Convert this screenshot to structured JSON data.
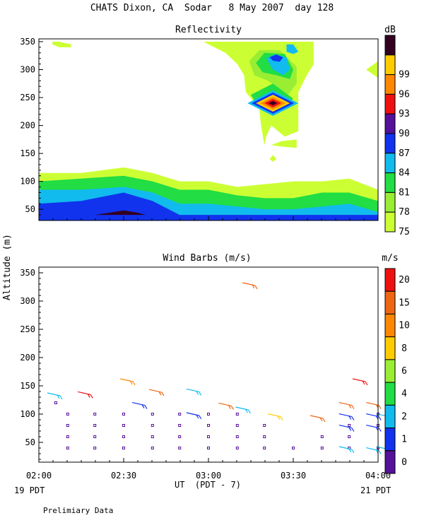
{
  "figure": {
    "title": "CHATS Dixon, CA  Sodar   8 May 2007  day 128",
    "xlabel": "UT  (PDT - 7)",
    "ylabel": "Altitude (m)",
    "x_left_note": "19 PDT",
    "x_right_note": "21 PDT",
    "footer": "Prelimiary Data"
  },
  "chart_data": [
    {
      "type": "heatmap",
      "title": "Reflectivity",
      "colorbar_unit": "dB",
      "colorbar_ticks": [
        "75",
        "78",
        "81",
        "84",
        "87",
        "90",
        "93",
        "96",
        "99"
      ],
      "colorbar_colors": [
        "#ccff33",
        "#99ee33",
        "#22dd44",
        "#11bbee",
        "#1133ee",
        "#551199",
        "#ee1111",
        "#ff8800",
        "#ffcc00",
        "#330022"
      ],
      "x_ticks": [
        "02:00",
        "02:30",
        "03:00",
        "03:30",
        "04:00"
      ],
      "x_range_hours": [
        2.0,
        4.0
      ],
      "y_ticks": [
        "50",
        "100",
        "150",
        "200",
        "250",
        "300",
        "350"
      ],
      "ylim": [
        30,
        355
      ],
      "layers": [
        {
          "label_range": "75-78",
          "color": "#ccff33",
          "x": [
            2.0,
            2.25,
            2.5,
            2.67,
            2.83,
            3.0,
            3.17,
            3.33,
            3.5,
            3.67,
            3.83,
            4.0
          ],
          "y_top": [
            115,
            115,
            125,
            115,
            100,
            100,
            90,
            95,
            100,
            100,
            105,
            85
          ]
        },
        {
          "label_range": "78-81",
          "color": "#22dd44",
          "x": [
            2.0,
            2.25,
            2.5,
            2.67,
            2.83,
            3.0,
            3.17,
            3.33,
            3.5,
            3.67,
            3.83,
            4.0
          ],
          "y_top": [
            100,
            105,
            110,
            100,
            85,
            85,
            75,
            70,
            70,
            80,
            80,
            65
          ]
        },
        {
          "label_range": "81-84",
          "color": "#11bbee",
          "x": [
            2.0,
            2.25,
            2.5,
            2.67,
            2.83,
            3.0,
            3.17,
            3.33,
            3.5,
            3.67,
            3.83,
            4.0
          ],
          "y_top": [
            85,
            85,
            90,
            80,
            60,
            60,
            55,
            50,
            50,
            55,
            60,
            45
          ]
        },
        {
          "label_range": "84-87",
          "color": "#1133ee",
          "x": [
            2.0,
            2.25,
            2.5,
            2.67,
            2.83,
            3.0,
            3.17,
            3.33,
            3.5,
            3.67,
            3.83,
            4.0
          ],
          "y_top": [
            60,
            65,
            80,
            65,
            40,
            40,
            40,
            40,
            40,
            40,
            40,
            40
          ]
        }
      ],
      "features": [
        {
          "kind": "patch",
          "color": "#ccff33",
          "points": [
            [
              2.08,
              350
            ],
            [
              2.12,
              350
            ],
            [
              2.19,
              345
            ],
            [
              2.19,
              340
            ],
            [
              2.12,
              340
            ],
            [
              2.08,
              345
            ]
          ]
        },
        {
          "kind": "patch",
          "color": "#ccff33",
          "points": [
            [
              2.97,
              350
            ],
            [
              3.62,
              350
            ],
            [
              3.62,
              310
            ],
            [
              3.58,
              290
            ],
            [
              3.53,
              260
            ],
            [
              3.53,
              190
            ],
            [
              3.45,
              180
            ],
            [
              3.37,
              200
            ],
            [
              3.34,
              180
            ],
            [
              3.33,
              165
            ],
            [
              3.31,
              200
            ],
            [
              3.3,
              230
            ],
            [
              3.22,
              260
            ],
            [
              3.21,
              290
            ],
            [
              3.17,
              310
            ],
            [
              3.1,
              330
            ]
          ]
        },
        {
          "kind": "patch",
          "color": "#99ee33",
          "points": [
            [
              3.24,
              315
            ],
            [
              3.3,
              335
            ],
            [
              3.42,
              335
            ],
            [
              3.52,
              305
            ],
            [
              3.52,
              275
            ],
            [
              3.47,
              255
            ],
            [
              3.35,
              280
            ],
            [
              3.27,
              290
            ]
          ]
        },
        {
          "kind": "patch",
          "color": "#22dd44",
          "points": [
            [
              3.28,
              312
            ],
            [
              3.33,
              330
            ],
            [
              3.45,
              328
            ],
            [
              3.5,
              300
            ],
            [
              3.48,
              283
            ],
            [
              3.4,
              290
            ],
            [
              3.32,
              295
            ]
          ]
        },
        {
          "kind": "patch",
          "color": "#11bbee",
          "points": [
            [
              3.34,
              320
            ],
            [
              3.39,
              327
            ],
            [
              3.46,
              322
            ],
            [
              3.48,
              300
            ],
            [
              3.44,
              290
            ],
            [
              3.38,
              300
            ]
          ]
        },
        {
          "kind": "patch",
          "color": "#11bbee",
          "points": [
            [
              3.46,
              345
            ],
            [
              3.5,
              345
            ],
            [
              3.53,
              332
            ],
            [
              3.5,
              328
            ],
            [
              3.46,
              332
            ]
          ]
        },
        {
          "kind": "patch",
          "color": "#1133ee",
          "points": [
            [
              3.36,
              322
            ],
            [
              3.4,
              327
            ],
            [
              3.44,
              322
            ],
            [
              3.42,
              314
            ],
            [
              3.38,
              316
            ]
          ]
        },
        {
          "kind": "patch",
          "color": "#22dd44",
          "points": [
            [
              3.25,
              255
            ],
            [
              3.38,
              275
            ],
            [
              3.5,
              248
            ],
            [
              3.41,
              222
            ],
            [
              3.3,
              230
            ]
          ]
        },
        {
          "kind": "patch",
          "color": "#ccff33",
          "points": [
            [
              3.37,
              165
            ],
            [
              3.43,
              172
            ],
            [
              3.52,
              175
            ],
            [
              3.52,
              160
            ],
            [
              3.44,
              162
            ]
          ]
        },
        {
          "kind": "patch",
          "color": "#ccff33",
          "points": [
            [
              3.36,
              140
            ],
            [
              3.38,
              147
            ],
            [
              3.4,
              140
            ],
            [
              3.38,
              135
            ]
          ]
        },
        {
          "kind": "patch",
          "color": "#ccff33",
          "points": [
            [
              3.93,
              300
            ],
            [
              4.0,
              315
            ],
            [
              4.0,
              285
            ]
          ]
        },
        {
          "kind": "patch",
          "color": "#330022",
          "points": [
            [
              2.33,
              40
            ],
            [
              2.42,
              44
            ],
            [
              2.5,
              48
            ],
            [
              2.58,
              44
            ],
            [
              2.63,
              40
            ]
          ]
        }
      ],
      "hotspot": {
        "x": 3.38,
        "y": 240,
        "bands": [
          "#11bbee",
          "#1133ee",
          "#ffcc00",
          "#ff8800",
          "#ee1111",
          "#330022"
        ]
      }
    },
    {
      "type": "scatter",
      "title": "Wind Barbs (m/s)",
      "colorbar_unit": "m/s",
      "colorbar_ticks": [
        "0",
        "1",
        "2",
        "4",
        "6",
        "8",
        "10",
        "15",
        "20"
      ],
      "colorbar_colors": [
        "#551199",
        "#1133ee",
        "#11bbee",
        "#22dd44",
        "#99ee33",
        "#ffcc00",
        "#ff8800",
        "#ee6611",
        "#ee1111"
      ],
      "x_ticks": [
        "02:00",
        "02:30",
        "03:00",
        "03:30",
        "04:00"
      ],
      "x_range_hours": [
        2.0,
        4.0
      ],
      "y_ticks": [
        "50",
        "100",
        "150",
        "200",
        "250",
        "300",
        "350"
      ],
      "ylim": [
        15,
        360
      ],
      "calm_points": {
        "color": "#551199",
        "x": [
          2.17,
          2.33,
          2.5,
          2.67,
          2.83,
          3.0,
          3.17,
          3.33,
          3.5,
          3.67,
          3.83,
          4.0
        ],
        "heights": [
          [
            40,
            60,
            80,
            100
          ],
          [
            40,
            60,
            80,
            100
          ],
          [
            40,
            60,
            80,
            100
          ],
          [
            40,
            60,
            80,
            100
          ],
          [
            40,
            60,
            80,
            100
          ],
          [
            40,
            60,
            80,
            100
          ],
          [
            40,
            60,
            80,
            100
          ],
          [
            40,
            60,
            80
          ],
          [
            40
          ],
          [
            40,
            60
          ],
          [
            40,
            60,
            80
          ],
          [
            40,
            80,
            100
          ]
        ],
        "extra": [
          [
            2.1,
            120
          ]
        ]
      },
      "barbs": [
        {
          "x": 2.1,
          "y": 135,
          "color": "#11bbee"
        },
        {
          "x": 2.28,
          "y": 137,
          "color": "#ee1111"
        },
        {
          "x": 2.53,
          "y": 160,
          "color": "#ff8800"
        },
        {
          "x": 2.6,
          "y": 118,
          "color": "#1133ee"
        },
        {
          "x": 2.7,
          "y": 141,
          "color": "#ee6611"
        },
        {
          "x": 2.92,
          "y": 142,
          "color": "#11bbee"
        },
        {
          "x": 2.92,
          "y": 100,
          "color": "#1133ee"
        },
        {
          "x": 3.11,
          "y": 117,
          "color": "#ee6611"
        },
        {
          "x": 3.21,
          "y": 110,
          "color": "#11bbee"
        },
        {
          "x": 3.25,
          "y": 330,
          "color": "#ee6611"
        },
        {
          "x": 3.4,
          "y": 98,
          "color": "#ffcc00"
        },
        {
          "x": 3.65,
          "y": 95,
          "color": "#ee6611"
        },
        {
          "x": 3.82,
          "y": 118,
          "color": "#ee6611"
        },
        {
          "x": 3.82,
          "y": 98,
          "color": "#1133ee"
        },
        {
          "x": 3.82,
          "y": 78,
          "color": "#1133ee"
        },
        {
          "x": 3.82,
          "y": 40,
          "color": "#11bbee"
        },
        {
          "x": 3.9,
          "y": 160,
          "color": "#ee1111"
        },
        {
          "x": 3.98,
          "y": 118,
          "color": "#ee6611"
        },
        {
          "x": 3.98,
          "y": 98,
          "color": "#1133ee"
        },
        {
          "x": 3.98,
          "y": 78,
          "color": "#1133ee"
        },
        {
          "x": 3.98,
          "y": 38,
          "color": "#11bbee"
        },
        {
          "x": 4.04,
          "y": 98,
          "color": "#11bbee"
        },
        {
          "x": 4.04,
          "y": 40,
          "color": "#11bbee"
        }
      ]
    }
  ]
}
